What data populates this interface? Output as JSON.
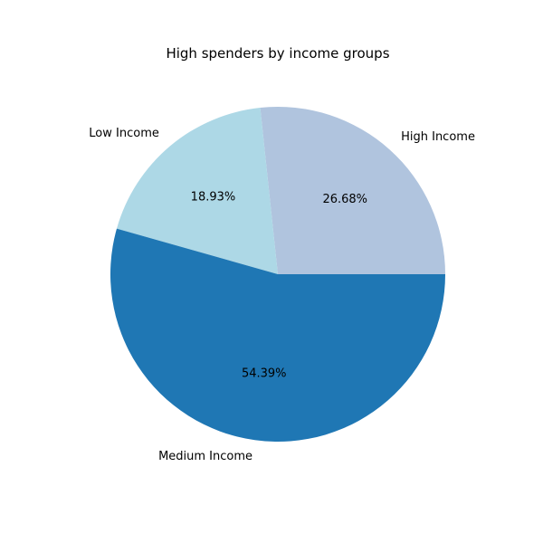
{
  "chart_data": {
    "type": "pie",
    "title": "High spenders by income groups",
    "categories": [
      "High Income",
      "Low Income",
      "Medium Income"
    ],
    "values": [
      26.68,
      18.93,
      54.39
    ],
    "value_labels": [
      "26.68%",
      "18.93%",
      "54.39%"
    ],
    "colors": [
      "#b0c4de",
      "#add8e6",
      "#1f77b4"
    ],
    "start_angle": 0,
    "direction": "counterclockwise",
    "legend": "none"
  }
}
